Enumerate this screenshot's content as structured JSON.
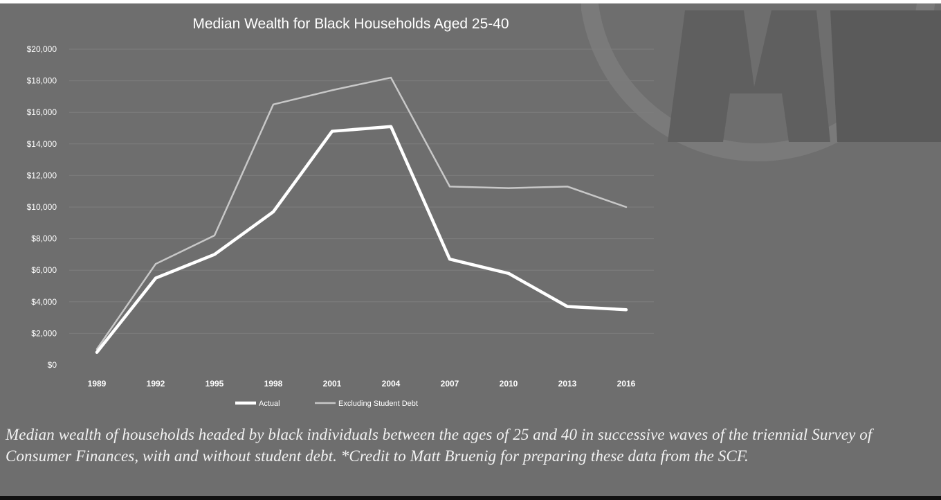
{
  "colors": {
    "background": "#6e6e6e",
    "actual_line": "#ffffff",
    "excluding_line": "#c8c8c8",
    "gridline": "#7d7d7d",
    "text": "#ffffff"
  },
  "chart_data": {
    "type": "line",
    "title": "Median Wealth for Black Households Aged 25-40",
    "xlabel": "",
    "ylabel": "",
    "categories": [
      "1989",
      "1992",
      "1995",
      "1998",
      "2001",
      "2004",
      "2007",
      "2010",
      "2013",
      "2016"
    ],
    "ylim": [
      0,
      20000
    ],
    "yticks": [
      "$0",
      "$2,000",
      "$4,000",
      "$6,000",
      "$8,000",
      "$10,000",
      "$12,000",
      "$14,000",
      "$16,000",
      "$18,000",
      "$20,000"
    ],
    "grid": true,
    "legend_position": "bottom",
    "series": [
      {
        "name": "Actual",
        "values": [
          800,
          5500,
          7000,
          9700,
          14800,
          15100,
          6700,
          5800,
          3700,
          3500
        ]
      },
      {
        "name": "Excluding Student Debt",
        "values": [
          1000,
          6400,
          8200,
          16500,
          17400,
          18200,
          11300,
          11200,
          11300,
          10000
        ]
      }
    ]
  },
  "caption": "Median wealth of households headed by black individuals between the ages of 25 and 40 in successive waves of the triennial Survey of Consumer Finances, with and without student debt. *Credit to Matt Bruenig for preparing these data from the SCF."
}
